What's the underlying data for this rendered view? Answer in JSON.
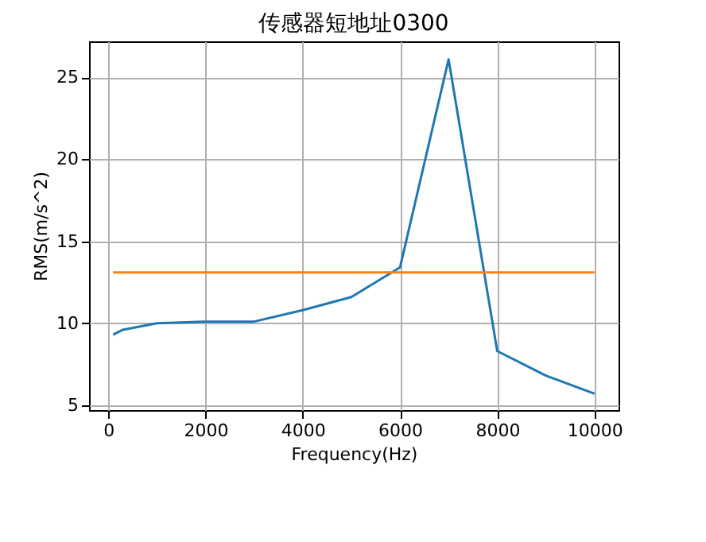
{
  "chart_data": {
    "type": "line",
    "title": "传感器短地址0300",
    "xlabel": "Frequency(Hz)",
    "ylabel": "RMS(m/s^2)",
    "x": [
      100,
      300,
      1000,
      2000,
      3000,
      4000,
      5000,
      6000,
      7000,
      8000,
      9000,
      10000
    ],
    "series": [
      {
        "color": "#1f77b4",
        "values": [
          9.3,
          9.6,
          10.0,
          10.1,
          10.1,
          10.8,
          11.6,
          13.4,
          26.1,
          8.3,
          6.8,
          5.7
        ]
      },
      {
        "color": "#ff7f0e",
        "x": [
          100,
          10000
        ],
        "values": [
          13.1,
          13.1
        ]
      }
    ],
    "xlim": [
      -395,
      10495
    ],
    "ylim": [
      4.7,
      27.2
    ],
    "xticks": [
      0,
      2000,
      4000,
      6000,
      8000,
      10000
    ],
    "yticks": [
      5,
      10,
      15,
      20,
      25
    ],
    "grid": true
  }
}
